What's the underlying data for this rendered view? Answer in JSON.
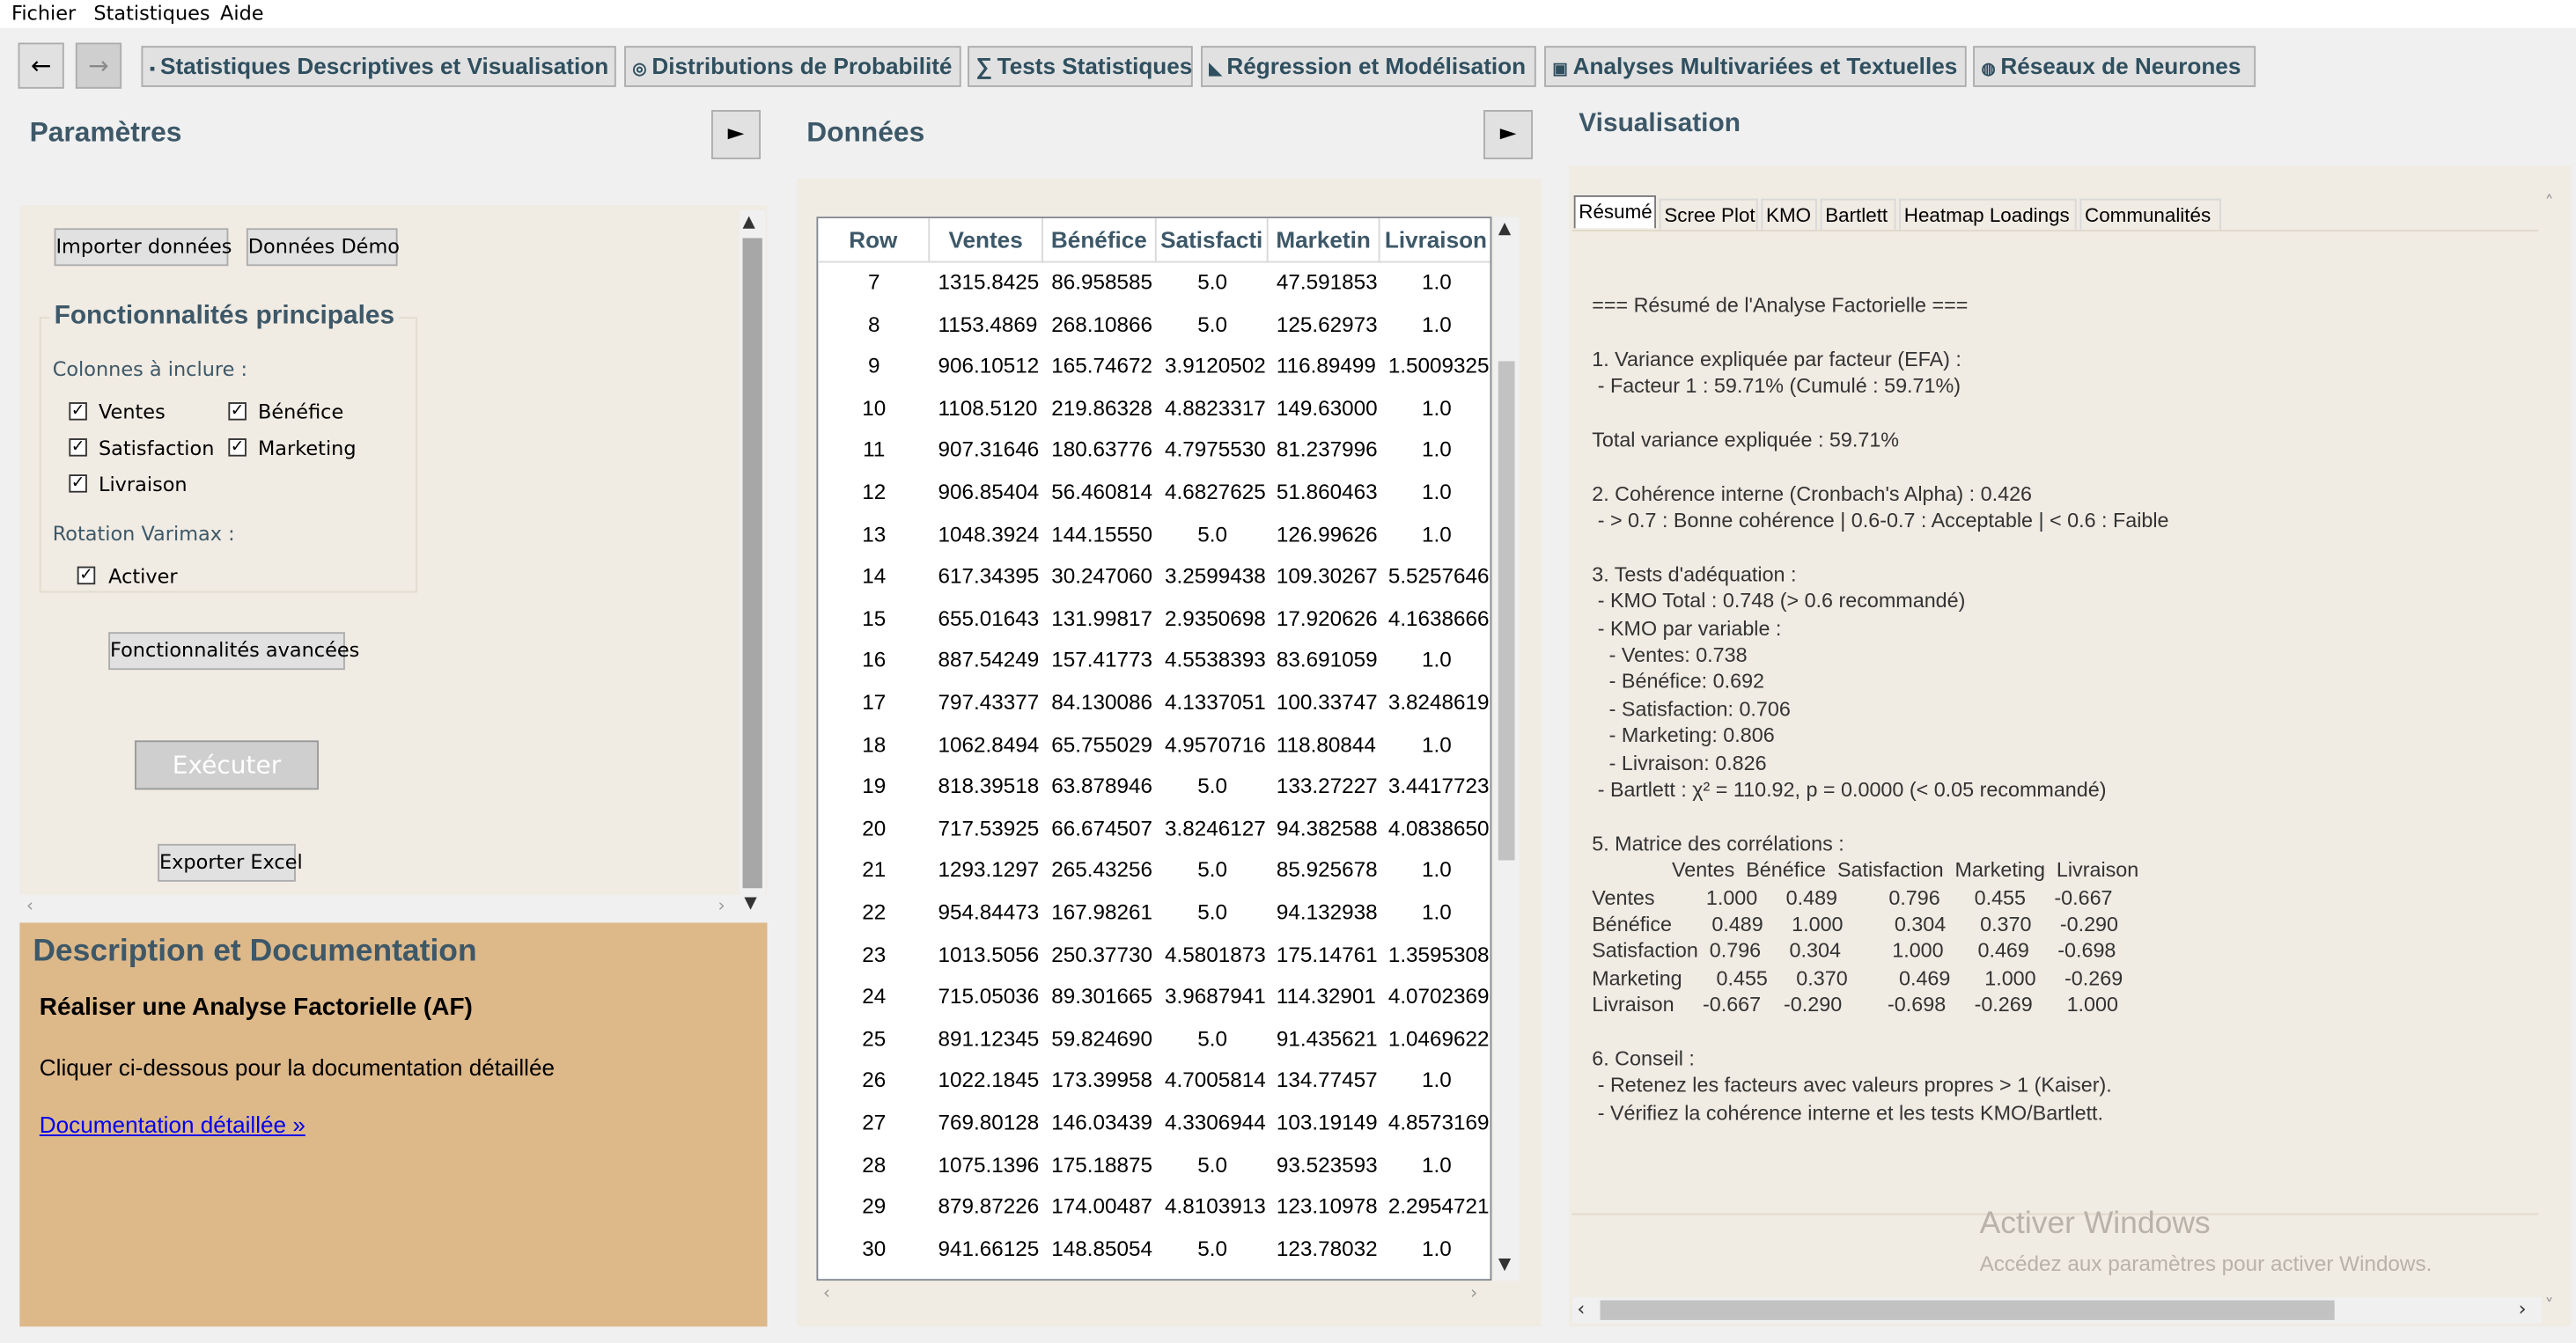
{
  "menu": [
    "Fichier",
    "Statistiques",
    "Aide"
  ],
  "nav": {
    "back": "←",
    "forward": "→"
  },
  "tabs": [
    {
      "icon": "▪",
      "label": "Statistiques Descriptives et Visualisation"
    },
    {
      "icon": "◎",
      "label": "Distributions de Probabilité"
    },
    {
      "icon": "∑",
      "label": "Tests Statistiques"
    },
    {
      "icon": "◣",
      "label": "Régression et Modélisation"
    },
    {
      "icon": "▣",
      "label": "Analyses Multivariées et Textuelles"
    },
    {
      "icon": "◍",
      "label": "Réseaux de Neurones"
    }
  ],
  "params": {
    "title": "Paramètres",
    "toggle": "►",
    "import_label": "Importer données",
    "demo_label": "Données Démo",
    "main_features_title": "Fonctionnalités principales",
    "columns_label": "Colonnes à inclure :",
    "columns": [
      {
        "label": "Ventes",
        "checked": true
      },
      {
        "label": "Bénéfice",
        "checked": true
      },
      {
        "label": "Satisfaction",
        "checked": true
      },
      {
        "label": "Marketing",
        "checked": true
      },
      {
        "label": "Livraison",
        "checked": true
      }
    ],
    "rotation_label": "Rotation Varimax :",
    "rotation_option": {
      "label": "Activer",
      "checked": true
    },
    "advanced_label": "Fonctionnalités avancées",
    "execute_label": "Exécuter",
    "export_label": "Exporter Excel"
  },
  "description": {
    "title": "Description et Documentation",
    "subtitle": "Réaliser une Analyse Factorielle (AF)",
    "text": "Cliquer ci-dessous pour la documentation détaillée",
    "link": "Documentation détaillée »"
  },
  "data_panel": {
    "title": "Données",
    "toggle": "►",
    "columns": [
      "Row",
      "Ventes",
      "Bénéfice",
      "Satisfacti",
      "Marketin",
      "Livraison"
    ],
    "rows": [
      [
        "7",
        "1315.8425",
        "86.958585",
        "5.0",
        "47.591853",
        "1.0"
      ],
      [
        "8",
        "1153.4869",
        "268.10866",
        "5.0",
        "125.62973",
        "1.0"
      ],
      [
        "9",
        "906.10512",
        "165.74672",
        "3.9120502",
        "116.89499",
        "1.5009325"
      ],
      [
        "10",
        "1108.5120",
        "219.86328",
        "4.8823317",
        "149.63000",
        "1.0"
      ],
      [
        "11",
        "907.31646",
        "180.63776",
        "4.7975530",
        "81.237996",
        "1.0"
      ],
      [
        "12",
        "906.85404",
        "56.460814",
        "4.6827625",
        "51.860463",
        "1.0"
      ],
      [
        "13",
        "1048.3924",
        "144.15550",
        "5.0",
        "126.99626",
        "1.0"
      ],
      [
        "14",
        "617.34395",
        "30.247060",
        "3.2599438",
        "109.30267",
        "5.5257646"
      ],
      [
        "15",
        "655.01643",
        "131.99817",
        "2.9350698",
        "17.920626",
        "4.1638666"
      ],
      [
        "16",
        "887.54249",
        "157.41773",
        "4.5538393",
        "83.691059",
        "1.0"
      ],
      [
        "17",
        "797.43377",
        "84.130086",
        "4.1337051",
        "100.33747",
        "3.8248619"
      ],
      [
        "18",
        "1062.8494",
        "65.755029",
        "4.9570716",
        "118.80844",
        "1.0"
      ],
      [
        "19",
        "818.39518",
        "63.878946",
        "5.0",
        "133.27227",
        "3.4417723"
      ],
      [
        "20",
        "717.53925",
        "66.674507",
        "3.8246127",
        "94.382588",
        "4.0838650"
      ],
      [
        "21",
        "1293.1297",
        "265.43256",
        "5.0",
        "85.925678",
        "1.0"
      ],
      [
        "22",
        "954.84473",
        "167.98261",
        "5.0",
        "94.132938",
        "1.0"
      ],
      [
        "23",
        "1013.5056",
        "250.37730",
        "4.5801873",
        "175.14761",
        "1.3595308"
      ],
      [
        "24",
        "715.05036",
        "89.301665",
        "3.9687941",
        "114.32901",
        "4.0702369"
      ],
      [
        "25",
        "891.12345",
        "59.824690",
        "5.0",
        "91.435621",
        "1.0469622"
      ],
      [
        "26",
        "1022.1845",
        "173.39958",
        "4.7005814",
        "134.77457",
        "1.0"
      ],
      [
        "27",
        "769.80128",
        "146.03439",
        "4.3306944",
        "103.19149",
        "4.8573169"
      ],
      [
        "28",
        "1075.1396",
        "175.18875",
        "5.0",
        "93.523593",
        "1.0"
      ],
      [
        "29",
        "879.87226",
        "174.00487",
        "4.8103913",
        "123.10978",
        "2.2954721"
      ],
      [
        "30",
        "941.66125",
        "148.85054",
        "5.0",
        "123.78032",
        "1.0"
      ]
    ]
  },
  "visual": {
    "title": "Visualisation",
    "tabs": [
      "Résumé",
      "Scree Plot",
      "KMO",
      "Bartlett",
      "Heatmap Loadings",
      "Communalités"
    ],
    "summary_lines": [
      "=== Résumé de l'Analyse Factorielle ===",
      "",
      "1. Variance expliquée par facteur (EFA) :",
      " - Facteur 1 : 59.71% (Cumulé : 59.71%)",
      "",
      "Total variance expliquée : 59.71%",
      "",
      "2. Cohérence interne (Cronbach's Alpha) : 0.426",
      " - > 0.7 : Bonne cohérence | 0.6-0.7 : Acceptable | < 0.6 : Faible",
      "",
      "3. Tests d'adéquation :",
      " - KMO Total : 0.748 (> 0.6 recommandé)",
      " - KMO par variable :",
      "   - Ventes: 0.738",
      "   - Bénéfice: 0.692",
      "   - Satisfaction: 0.706",
      "   - Marketing: 0.806",
      "   - Livraison: 0.826",
      " - Bartlett : χ² = 110.92, p = 0.0000 (< 0.05 recommandé)",
      "",
      "5. Matrice des corrélations :",
      "              Ventes  Bénéfice  Satisfaction  Marketing  Livraison",
      "Ventes         1.000     0.489         0.796      0.455     -0.667",
      "Bénéfice       0.489     1.000         0.304      0.370     -0.290",
      "Satisfaction  0.796     0.304         1.000      0.469     -0.698",
      "Marketing      0.455     0.370         0.469      1.000     -0.269",
      "Livraison     -0.667    -0.290        -0.698     -0.269      1.000",
      "",
      "6. Conseil :",
      " - Retenez les facteurs avec valeurs propres > 1 (Kaiser).",
      " - Vérifiez la cohérence interne et les tests KMO/Bartlett."
    ],
    "watermark_title": "Activer Windows",
    "watermark_sub": "Accédez aux paramètres pour activer Windows."
  }
}
